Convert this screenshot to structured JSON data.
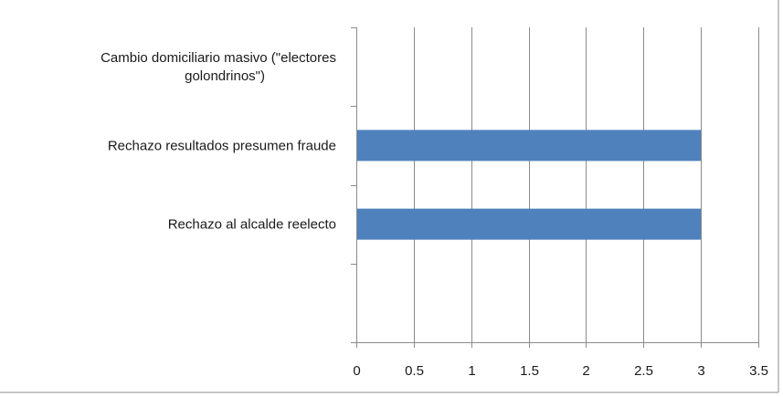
{
  "chart_data": {
    "type": "bar",
    "orientation": "horizontal",
    "categories": [
      [
        "Cambio domiciliario masivo (\"electores",
        "golondrinos\")"
      ],
      [
        "Rechazo resultados presumen fraude"
      ],
      [
        "Rechazo al alcalde reelecto"
      ],
      [
        ""
      ]
    ],
    "values": [
      0,
      3,
      3,
      0
    ],
    "xlim": [
      0,
      3.5
    ],
    "xticks": [
      "0",
      "0.5",
      "1",
      "1.5",
      "2",
      "2.5",
      "3",
      "3.5"
    ],
    "xtick_values": [
      0,
      0.5,
      1,
      1.5,
      2,
      2.5,
      3,
      3.5
    ],
    "bar_color": "#4f81bd",
    "grid": true,
    "title": "",
    "xlabel": "",
    "ylabel": ""
  }
}
